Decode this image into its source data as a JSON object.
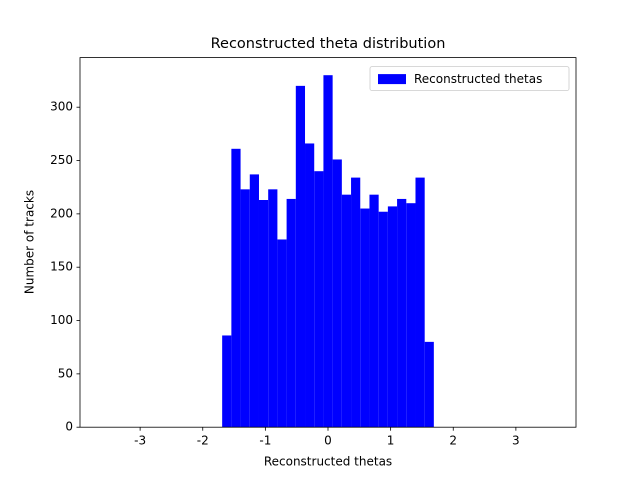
{
  "chart_data": {
    "type": "histogram",
    "title": "Reconstructed theta distribution",
    "x_label": "Reconstructed thetas",
    "y_label": "Number of tracks",
    "bins": [
      -1.69,
      -1.543,
      -1.396,
      -1.249,
      -1.102,
      -0.955,
      -0.808,
      -0.661,
      -0.514,
      -0.367,
      -0.22,
      -0.073,
      0.074,
      0.221,
      0.368,
      0.515,
      0.662,
      0.809,
      0.956,
      1.103,
      1.25,
      1.397,
      1.544,
      1.69
    ],
    "series": [
      {
        "name": "Reconstructed thetas",
        "color": "#0000ff",
        "values": [
          86,
          261,
          223,
          237,
          213,
          223,
          176,
          214,
          320,
          266,
          240,
          330,
          251,
          218,
          234,
          205,
          218,
          202,
          207,
          214,
          210,
          234,
          80
        ]
      }
    ],
    "xlim": [
      -3.96,
      3.96
    ],
    "xticks": [
      -3,
      -2,
      -1,
      0,
      1,
      2,
      3
    ],
    "ylim": [
      0,
      346.5
    ],
    "yticks": [
      0,
      50,
      100,
      150,
      200,
      250,
      300
    ],
    "legend": "upper right"
  }
}
